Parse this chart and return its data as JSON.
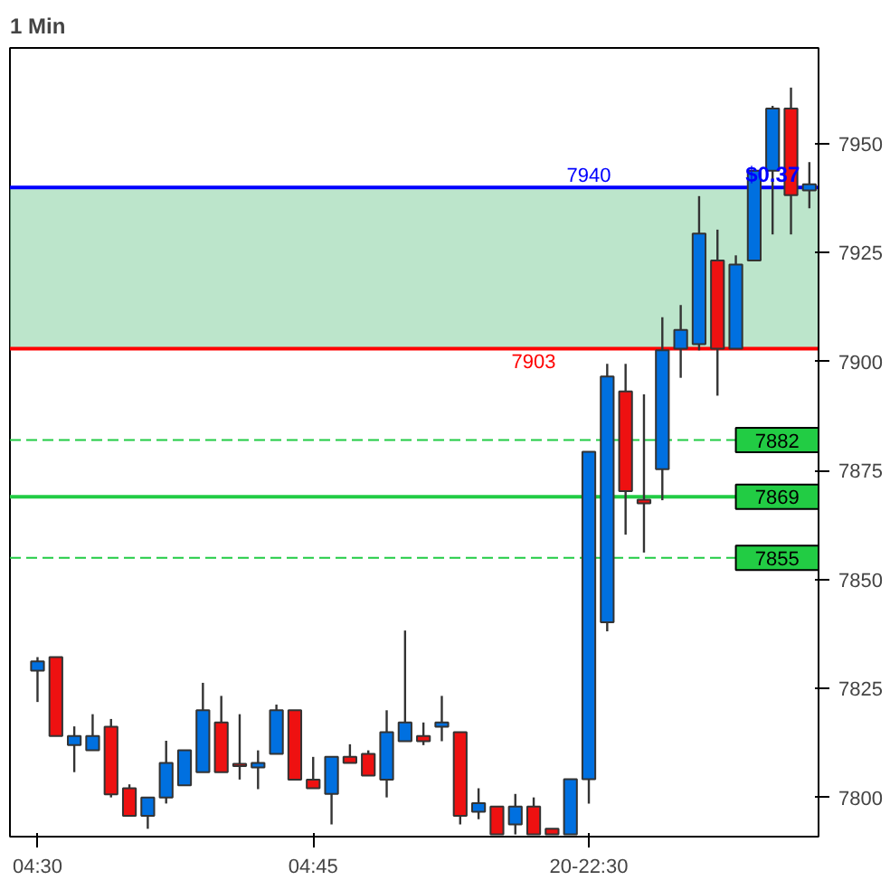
{
  "chart_data": {
    "type": "candlestick",
    "title": "1 Min",
    "categories": [
      "04:30",
      null,
      null,
      null,
      null,
      null,
      null,
      null,
      null,
      null,
      null,
      null,
      null,
      null,
      null,
      "04:45",
      null,
      null,
      null,
      null,
      null,
      null,
      null,
      null,
      null,
      null,
      null,
      null,
      null,
      null,
      "20-22:30",
      null,
      null,
      null,
      null,
      null,
      null,
      null,
      null,
      null,
      null,
      null,
      null
    ],
    "ohlc": [
      [
        7829.1,
        7832.2,
        7821.9,
        7831.2
      ],
      [
        7832.2,
        7832.2,
        7814.1,
        7814.1
      ],
      [
        7812.0,
        7816.3,
        7805.8,
        7814.1
      ],
      [
        7810.8,
        7819.1,
        7810.8,
        7814.1
      ],
      [
        7816.2,
        7818.0,
        7800.0,
        7800.7
      ],
      [
        7802.1,
        7803.0,
        7795.8,
        7795.8
      ],
      [
        7795.8,
        7800.0,
        7792.8,
        7800.0
      ],
      [
        7800.0,
        7813.0,
        7798.6,
        7807.9
      ],
      [
        7802.8,
        7810.8,
        7802.8,
        7810.8
      ],
      [
        7805.8,
        7826.3,
        7805.8,
        7820.0
      ],
      [
        7817.2,
        7823.3,
        7805.8,
        7805.8
      ],
      [
        7807.4,
        7819.1,
        7804.1,
        7807.2
      ],
      [
        7806.9,
        7810.8,
        7801.9,
        7807.9
      ],
      [
        7810.0,
        7821.3,
        7810.0,
        7820.0
      ],
      [
        7820.0,
        7820.0,
        7804.1,
        7804.1
      ],
      [
        7804.1,
        7809.3,
        7802.1,
        7802.1
      ],
      [
        7800.8,
        7809.3,
        7793.8,
        7809.3
      ],
      [
        7809.3,
        7812.2,
        7807.9,
        7807.9
      ],
      [
        7810.0,
        7810.8,
        7805.0,
        7805.0
      ],
      [
        7804.1,
        7820.0,
        7800.0,
        7815.0
      ],
      [
        7812.9,
        7838.3,
        7812.9,
        7817.2
      ],
      [
        7814.1,
        7817.2,
        7812.0,
        7812.9
      ],
      [
        7816.2,
        7823.3,
        7812.9,
        7817.2
      ],
      [
        7815.0,
        7815.0,
        7793.8,
        7795.8
      ],
      [
        7796.7,
        7802.1,
        7795.0,
        7798.7
      ],
      [
        7797.9,
        7797.9,
        7791.5,
        7791.5
      ],
      [
        7793.8,
        7800.8,
        7791.5,
        7797.9
      ],
      [
        7797.9,
        7800.0,
        7791.5,
        7791.5
      ],
      [
        7792.8,
        7792.8,
        7791.5,
        7791.5
      ],
      [
        7791.5,
        7804.2,
        7791.5,
        7804.2
      ],
      [
        7804.2,
        7879.3,
        7798.6,
        7879.3
      ],
      [
        7840.2,
        7899.5,
        7838.1,
        7896.6
      ],
      [
        7893.2,
        7899.5,
        7860.3,
        7870.3
      ],
      [
        7868.3,
        7892.5,
        7856.2,
        7867.5
      ],
      [
        7875.3,
        7910.2,
        7868.2,
        7902.6
      ],
      [
        7903.0,
        7913.0,
        7896.3,
        7907.3
      ],
      [
        7904.0,
        7938.0,
        7902.6,
        7929.4
      ],
      [
        7923.2,
        7930.3,
        7892.2,
        7903.0
      ],
      [
        7903.0,
        7924.4,
        7903.0,
        7922.3
      ],
      [
        7923.2,
        7943.8,
        7923.2,
        7943.8
      ],
      [
        7943.8,
        7958.7,
        7929.2,
        7958.1
      ],
      [
        7958.1,
        7962.9,
        7929.2,
        7938.2
      ],
      [
        7939.3,
        7945.8,
        7935.2,
        7940.7
      ]
    ],
    "colors": [
      "#0070e0",
      "#ee1111",
      "#0070e0",
      "#0070e0",
      "#ee1111",
      "#ee1111",
      "#0070e0",
      "#0070e0",
      "#0070e0",
      "#0070e0",
      "#ee1111",
      "#ee1111",
      "#0070e0",
      "#0070e0",
      "#ee1111",
      "#ee1111",
      "#0070e0",
      "#ee1111",
      "#ee1111",
      "#0070e0",
      "#0070e0",
      "#ee1111",
      "#0070e0",
      "#ee1111",
      "#0070e0",
      "#ee1111",
      "#0070e0",
      "#ee1111",
      "#ee1111",
      "#0070e0",
      "#0070e0",
      "#0070e0",
      "#ee1111",
      "#ee1111",
      "#0070e0",
      "#0070e0",
      "#0070e0",
      "#ee1111",
      "#0070e0",
      "#0070e0",
      "#0070e0",
      "#ee1111",
      "#0070e0"
    ],
    "ylim": [
      7791,
      7972
    ],
    "yticks": [
      7800,
      7825,
      7850,
      7875,
      7900,
      7925,
      7950
    ],
    "ref_lines": [
      {
        "axis": "y",
        "value": 7903,
        "label": "7903",
        "color": "#ff0000",
        "line_style": "solid"
      },
      {
        "axis": "y",
        "value": 7940,
        "label": "7940",
        "color": "#0000ff",
        "line_style": "solid"
      },
      {
        "axis": "y",
        "value": 7882,
        "label": "7882",
        "color": "#22cc44",
        "line_style": "dashed"
      },
      {
        "axis": "y",
        "value": 7869,
        "label": "7869",
        "color": "#22cc44",
        "line_style": "solid"
      },
      {
        "axis": "y",
        "value": 7855,
        "label": "7855",
        "color": "#22cc44",
        "line_style": "dashed"
      }
    ],
    "bands": [
      {
        "axis": "y",
        "from": 7903,
        "to": 7940,
        "color": "#8fd4a8"
      }
    ],
    "annotations": [
      {
        "text": "$0.37",
        "y": 7940
      }
    ],
    "grid": false
  }
}
